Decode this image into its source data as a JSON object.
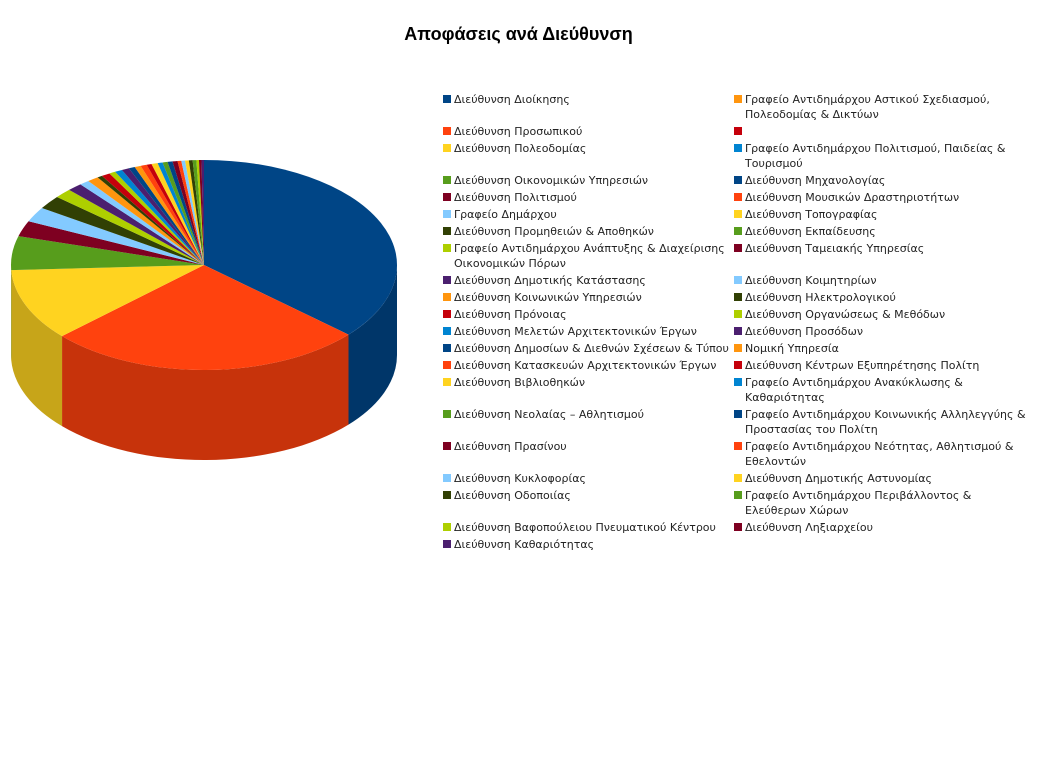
{
  "chart_data": {
    "type": "pie",
    "title": "Αποφάσεις ανά Διεύθυνση",
    "legend_position": "right",
    "categories": [
      "Διεύθυνση Διοίκησης",
      "Γραφείο Αντιδημάρχου Αστικού Σχεδιασμού, Πολεοδομίας & Δικτύων",
      "Διεύθυνση Προσωπικού",
      "",
      "Διεύθυνση Πολεοδομίας",
      "Γραφείο Αντιδημάρχου Πολιτισμού, Παιδείας & Τουρισμού",
      "Διεύθυνση Οικονομικών Υπηρεσιών",
      "Διεύθυνση Μηχανολογίας",
      "Διεύθυνση Πολιτισμού",
      "Διεύθυνση Μουσικών Δραστηριοτήτων",
      "Γραφείο Δημάρχου",
      "Διεύθυνση Τοπογραφίας",
      "Διεύθυνση Προμηθειών & Αποθηκών",
      "Διεύθυνση Εκπαίδευσης",
      "Γραφείο Αντιδημάρχου Ανάπτυξης & Διαχείρισης Οικονομικών Πόρων",
      "Διεύθυνση Ταμειακής Υπηρεσίας",
      "Διεύθυνση Δημοτικής Κατάστασης",
      "Διεύθυνση Κοιμητηρίων",
      "Διεύθυνση Κοινωνικών Υπηρεσιών",
      "Διεύθυνση Ηλεκτρολογικού",
      "Διεύθυνση Πρόνοιας",
      "Διεύθυνση Οργανώσεως & Μεθόδων",
      "Διεύθυνση Μελετών Αρχιτεκτονικών Έργων",
      "Διεύθυνση Προσόδων",
      "Διεύθυνση Δημοσίων & Διεθνών Σχέσεων & Τύπου",
      "Νομική Υπηρεσία",
      "Διεύθυνση Κατασκευών Αρχιτεκτονικών Έργων",
      "Διεύθυνση Κέντρων Εξυπηρέτησης Πολίτη",
      "Διεύθυνση Βιβλιοθηκών",
      "Γραφείο Αντιδημάρχου Ανακύκλωσης & Καθαριότητας",
      "Διεύθυνση Νεολαίας – Αθλητισμού",
      "Γραφείο Αντιδημάρχου Κοινωνικής Αλληλεγγύης & Προστασίας του Πολίτη",
      "Διεύθυνση Πρασίνου",
      "Γραφείο Αντιδημάρχου Νεότητας, Αθλητισμού & Εθελοντών",
      "Διεύθυνση Κυκλοφορίας",
      "Διεύθυνση Δημοτικής Αστυνομίας",
      "Διεύθυνση Οδοποιίας",
      "Γραφείο Αντιδημάρχου Περιβάλλοντος & Ελεύθερων Χώρων",
      "Διεύθυνση Βαφοπούλειου Πνευματικού Κέντρου",
      "Διεύθυνση Ληξιαρχείου",
      "Διεύθυνση Καθαριότητας"
    ],
    "values": [
      35.0,
      0.0,
      25.5,
      0.0,
      10.6,
      0.0,
      5.0,
      0.0,
      2.3,
      0.0,
      2.2,
      0.0,
      2.0,
      0.0,
      1.4,
      0.0,
      1.2,
      0.8,
      0.9,
      0.4,
      0.7,
      0.5,
      0.6,
      0.6,
      0.5,
      0.5,
      0.5,
      0.4,
      0.5,
      0.4,
      0.4,
      0.4,
      0.4,
      0.3,
      0.3,
      0.3,
      0.3,
      0.3,
      0.2,
      0.2,
      0.2
    ],
    "colors": [
      "#004586",
      "#ff950e",
      "#ff420e",
      "#c5000b",
      "#ffd320",
      "#0084d1",
      "#579d1c",
      "#004586",
      "#7e0021",
      "#ff420e",
      "#83caff",
      "#ffd320",
      "#314004",
      "#579d1c",
      "#aecf00",
      "#7e0021",
      "#4b1f6f",
      "#83caff",
      "#ff950e",
      "#314004",
      "#c5000b",
      "#aecf00",
      "#0084d1",
      "#4b1f6f",
      "#004586",
      "#ff950e",
      "#ff420e",
      "#c5000b",
      "#ffd320",
      "#0084d1",
      "#579d1c",
      "#004586",
      "#7e0021",
      "#ff420e",
      "#83caff",
      "#ffd320",
      "#314004",
      "#579d1c",
      "#aecf00",
      "#7e0021",
      "#4b1f6f"
    ]
  }
}
